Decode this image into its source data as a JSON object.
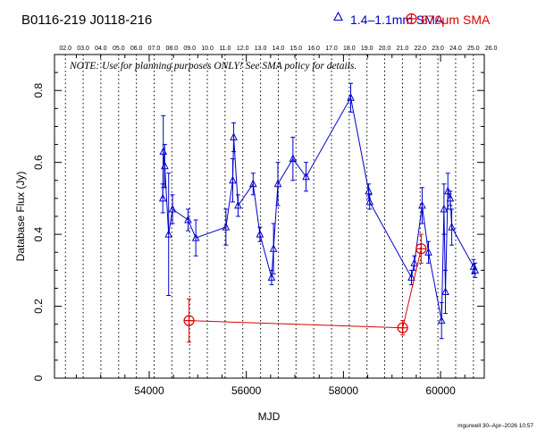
{
  "header": {
    "sources": "B0116-219    J0118-216",
    "legend_blue_label": "1.4–1.1mm SMA",
    "legend_red_label": "870μm SMA"
  },
  "note": "NOTE: Use for planning purposes ONLY!  See SMA policy for details.",
  "credit": "mgurwell 30–Apr–2026 10:57",
  "colors": {
    "blue": "#0000cc",
    "red": "#dd0000",
    "axis": "#000000"
  },
  "chart_data": {
    "type": "scatter",
    "xlabel": "MJD",
    "ylabel": "Database Flux (Jy)",
    "xlim": [
      52050,
      60900
    ],
    "ylim": [
      0,
      0.9
    ],
    "xticks": [
      54000,
      56000,
      58000,
      60000
    ],
    "xticks_minor_step": 500,
    "yticks": [
      0,
      0.2,
      0.4,
      0.6,
      0.8
    ],
    "yticks_minor_step": 0.05,
    "year_ticks": [
      {
        "label": "02.0",
        "mjd": 52275
      },
      {
        "label": "03.0",
        "mjd": 52640
      },
      {
        "label": "04.0",
        "mjd": 53005
      },
      {
        "label": "05.0",
        "mjd": 53371
      },
      {
        "label": "06.0",
        "mjd": 53736
      },
      {
        "label": "07.0",
        "mjd": 54101
      },
      {
        "label": "08.0",
        "mjd": 54466
      },
      {
        "label": "09.0",
        "mjd": 54832
      },
      {
        "label": "10.0",
        "mjd": 55197
      },
      {
        "label": "11.0",
        "mjd": 55562
      },
      {
        "label": "12.0",
        "mjd": 55927
      },
      {
        "label": "13.0",
        "mjd": 56293
      },
      {
        "label": "14.0",
        "mjd": 56658
      },
      {
        "label": "15.0",
        "mjd": 57023
      },
      {
        "label": "16.0",
        "mjd": 57388
      },
      {
        "label": "17.0",
        "mjd": 57754
      },
      {
        "label": "18.0",
        "mjd": 58119
      },
      {
        "label": "19.0",
        "mjd": 58484
      },
      {
        "label": "20.0",
        "mjd": 58849
      },
      {
        "label": "21.0",
        "mjd": 59215
      },
      {
        "label": "22.0",
        "mjd": 59580
      },
      {
        "label": "23.0",
        "mjd": 59945
      },
      {
        "label": "24.0",
        "mjd": 60310
      },
      {
        "label": "25.0",
        "mjd": 60676
      },
      {
        "label": "26.0",
        "mjd": 61041
      }
    ],
    "series": [
      {
        "name": "1.4–1.1mm SMA",
        "color": "#0000cc",
        "marker": "triangle",
        "connected": true,
        "points": [
          {
            "x": 54280,
            "y": 0.5,
            "err": 0.04
          },
          {
            "x": 54290,
            "y": 0.63,
            "err": 0.1
          },
          {
            "x": 54320,
            "y": 0.59,
            "err": 0.06
          },
          {
            "x": 54400,
            "y": 0.4,
            "err": 0.17
          },
          {
            "x": 54480,
            "y": 0.47,
            "err": 0.04
          },
          {
            "x": 54800,
            "y": 0.44,
            "err": 0.03
          },
          {
            "x": 54960,
            "y": 0.39,
            "err": 0.05
          },
          {
            "x": 55580,
            "y": 0.42,
            "err": 0.05
          },
          {
            "x": 55720,
            "y": 0.55,
            "err": 0.06
          },
          {
            "x": 55740,
            "y": 0.67,
            "err": 0.04
          },
          {
            "x": 55830,
            "y": 0.48,
            "err": 0.03
          },
          {
            "x": 56140,
            "y": 0.54,
            "err": 0.03
          },
          {
            "x": 56280,
            "y": 0.4,
            "err": 0.02
          },
          {
            "x": 56520,
            "y": 0.28,
            "err": 0.02
          },
          {
            "x": 56560,
            "y": 0.36,
            "err": 0.07
          },
          {
            "x": 56650,
            "y": 0.54,
            "err": 0.06
          },
          {
            "x": 56960,
            "y": 0.61,
            "err": 0.06
          },
          {
            "x": 57230,
            "y": 0.56,
            "err": 0.04
          },
          {
            "x": 58150,
            "y": 0.78,
            "err": 0.04
          },
          {
            "x": 58520,
            "y": 0.52,
            "err": 0.02
          },
          {
            "x": 58540,
            "y": 0.49,
            "err": 0.02
          },
          {
            "x": 59400,
            "y": 0.28,
            "err": 0.02
          },
          {
            "x": 59460,
            "y": 0.32,
            "err": 0.02
          },
          {
            "x": 59620,
            "y": 0.48,
            "err": 0.05
          },
          {
            "x": 59750,
            "y": 0.35,
            "err": 0.03
          },
          {
            "x": 60020,
            "y": 0.16,
            "err": 0.05
          },
          {
            "x": 60070,
            "y": 0.47,
            "err": 0.07
          },
          {
            "x": 60100,
            "y": 0.24,
            "err": 0.06
          },
          {
            "x": 60150,
            "y": 0.52,
            "err": 0.05
          },
          {
            "x": 60200,
            "y": 0.5,
            "err": 0.02
          },
          {
            "x": 60230,
            "y": 0.42,
            "err": 0.05
          },
          {
            "x": 60680,
            "y": 0.31,
            "err": 0.02
          },
          {
            "x": 60710,
            "y": 0.3,
            "err": 0.02
          }
        ]
      },
      {
        "name": "870μm SMA",
        "color": "#dd0000",
        "marker": "circle-plus",
        "connected": true,
        "points": [
          {
            "x": 54820,
            "y": 0.16,
            "err": 0.06
          },
          {
            "x": 59220,
            "y": 0.14,
            "err": 0.02
          },
          {
            "x": 59600,
            "y": 0.36,
            "err": 0.04
          }
        ]
      }
    ]
  }
}
